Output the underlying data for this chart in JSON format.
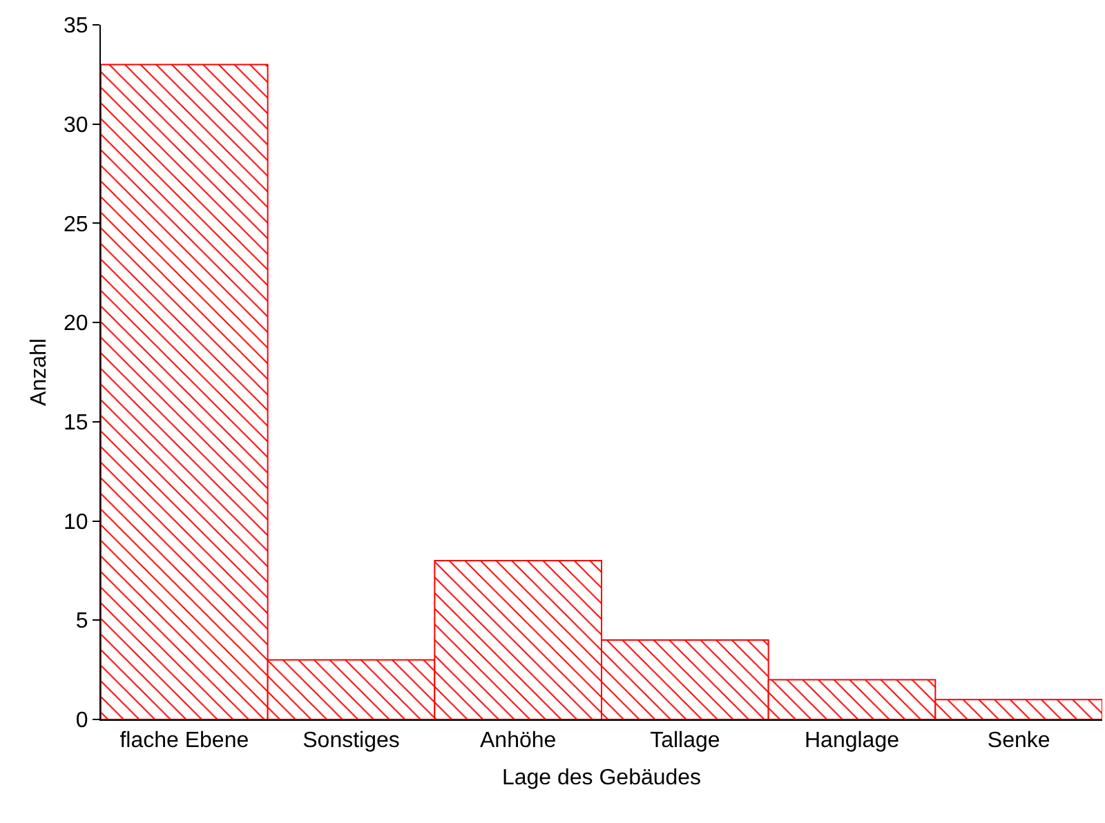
{
  "chart_data": {
    "type": "bar",
    "xlabel": "Lage des Gebäudes",
    "ylabel": "Anzahl",
    "categories": [
      "flache Ebene",
      "Sonstiges",
      "Anhöhe",
      "Tallage",
      "Hanglage",
      "Senke"
    ],
    "values": [
      33,
      3,
      8,
      4,
      2,
      1
    ],
    "color": "#ff0000",
    "ylim": [
      0,
      35
    ],
    "yticks": [
      0,
      5,
      10,
      15,
      20,
      25,
      30,
      35
    ],
    "grid": false
  }
}
